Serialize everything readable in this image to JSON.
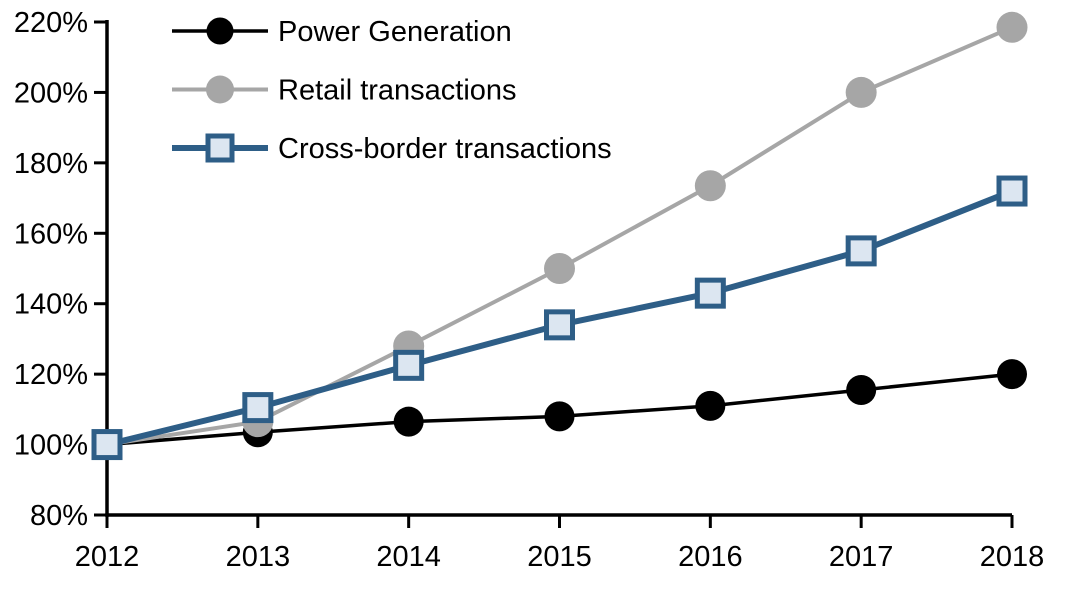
{
  "chart_data": {
    "type": "line",
    "title": "",
    "xlabel": "",
    "ylabel": "",
    "x_labels": [
      "2012",
      "2013",
      "2014",
      "2015",
      "2016",
      "2017",
      "2018"
    ],
    "ylim": [
      80,
      220
    ],
    "y_tick_step": 20,
    "y_tick_values": [
      80,
      100,
      120,
      140,
      160,
      180,
      200,
      220
    ],
    "y_tick_labels": [
      "80%",
      "100%",
      "120%",
      "140%",
      "160%",
      "180%",
      "200%",
      "220%"
    ],
    "grid": false,
    "legend_position": "top-left",
    "series": [
      {
        "name": "Power Generation",
        "color": "#000000",
        "marker": "circle",
        "marker_fill": "#000000",
        "values": [
          100,
          103.5,
          106.5,
          108,
          111,
          115.5,
          120
        ]
      },
      {
        "name": "Retail transactions",
        "color": "#A6A6A6",
        "marker": "circle",
        "marker_fill": "#A6A6A6",
        "values": [
          100,
          106.5,
          128,
          150,
          173.5,
          200,
          218.5
        ]
      },
      {
        "name": "Cross-border transactions",
        "color": "#2E5E87",
        "marker": "square",
        "marker_fill": "#DCE6F1",
        "values": [
          100,
          110.5,
          122.5,
          134,
          143,
          155,
          172
        ]
      }
    ],
    "colors": {
      "axis": "#000000",
      "background": "#FFFFFF"
    }
  }
}
